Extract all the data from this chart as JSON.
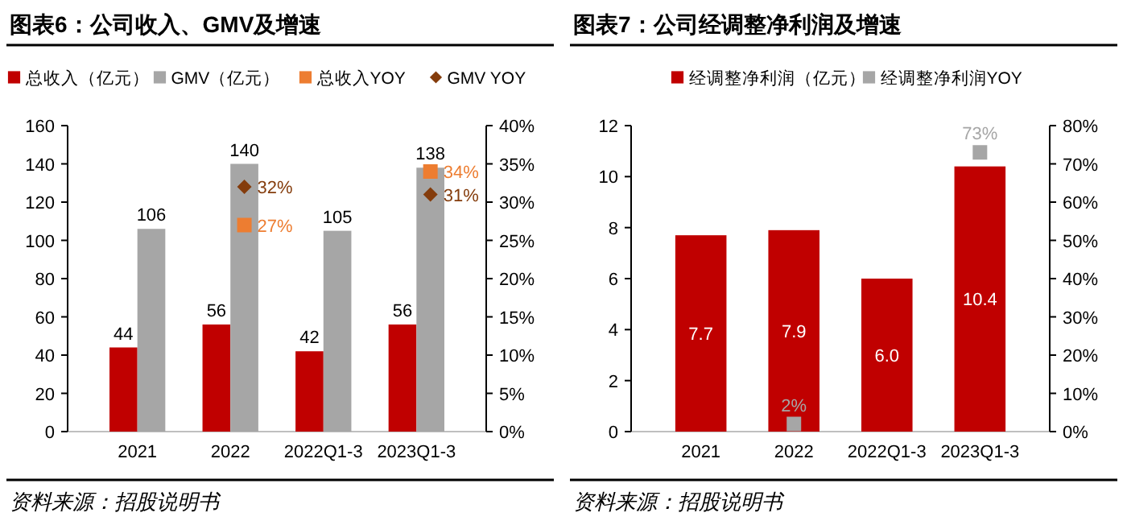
{
  "chart_data": [
    {
      "type": "bar",
      "title": "图表6：公司收入、GMV及增速",
      "annotations": [
        "资料来源：招股说明书"
      ],
      "categories": [
        "2021",
        "2022",
        "2022Q1-3",
        "2023Q1-3"
      ],
      "series": [
        {
          "name": "总收入（亿元）",
          "color": "#c00000",
          "values": [
            44,
            56,
            42,
            56
          ],
          "value_labels": [
            "44",
            "56",
            "42",
            "56"
          ]
        },
        {
          "name": "GMV（亿元）",
          "color": "#a6a6a6",
          "values": [
            106,
            140,
            105,
            138
          ],
          "value_labels": [
            "106",
            "140",
            "105",
            "138"
          ]
        },
        {
          "name": "总收入YOY",
          "type": "scatter",
          "axis": "y2",
          "marker": "square",
          "color": "#ed7d31",
          "values": [
            null,
            27,
            null,
            34
          ],
          "value_labels": [
            null,
            "27%",
            null,
            "34%"
          ]
        },
        {
          "name": "GMV YOY",
          "type": "scatter",
          "axis": "y2",
          "marker": "diamond",
          "color": "#843c0c",
          "values": [
            null,
            32,
            null,
            31
          ],
          "value_labels": [
            null,
            "32%",
            null,
            "31%"
          ]
        }
      ],
      "ylim": [
        0,
        160
      ],
      "yticks": [
        0,
        20,
        40,
        60,
        80,
        100,
        120,
        140,
        160
      ],
      "y2lim": [
        0,
        40
      ],
      "y2ticks": [
        {
          "value": 0,
          "label": "0%"
        },
        {
          "value": 5,
          "label": "5%"
        },
        {
          "value": 10,
          "label": "10%"
        },
        {
          "value": 15,
          "label": "15%"
        },
        {
          "value": 20,
          "label": "20%"
        },
        {
          "value": 25,
          "label": "25%"
        },
        {
          "value": 30,
          "label": "30%"
        },
        {
          "value": 35,
          "label": "35%"
        },
        {
          "value": 40,
          "label": "40%"
        }
      ],
      "legend": "top",
      "grid": false
    },
    {
      "type": "bar",
      "title": "图表7：公司经调整净利润及增速",
      "annotations": [
        "资料来源：招股说明书"
      ],
      "categories": [
        "2021",
        "2022",
        "2022Q1-3",
        "2023Q1-3"
      ],
      "series": [
        {
          "name": "经调整净利润（亿元）",
          "color": "#c00000",
          "values": [
            7.7,
            7.9,
            6.0,
            10.4
          ],
          "value_labels": [
            "7.7",
            "7.9",
            "6.0",
            "10.4"
          ]
        },
        {
          "name": "经调整净利润YOY",
          "type": "scatter",
          "axis": "y2",
          "marker": "square",
          "color": "#a6a6a6",
          "values": [
            null,
            2,
            null,
            73
          ],
          "value_labels": [
            null,
            "2%",
            null,
            "73%"
          ]
        }
      ],
      "ylim": [
        0,
        12
      ],
      "yticks": [
        0,
        2,
        4,
        6,
        8,
        10,
        12
      ],
      "y2lim": [
        0,
        80
      ],
      "y2ticks": [
        {
          "value": 0,
          "label": "0%"
        },
        {
          "value": 10,
          "label": "10%"
        },
        {
          "value": 20,
          "label": "20%"
        },
        {
          "value": 30,
          "label": "30%"
        },
        {
          "value": 40,
          "label": "40%"
        },
        {
          "value": 50,
          "label": "50%"
        },
        {
          "value": 60,
          "label": "60%"
        },
        {
          "value": 70,
          "label": "70%"
        },
        {
          "value": 80,
          "label": "80%"
        }
      ],
      "legend": "top",
      "grid": false
    }
  ]
}
